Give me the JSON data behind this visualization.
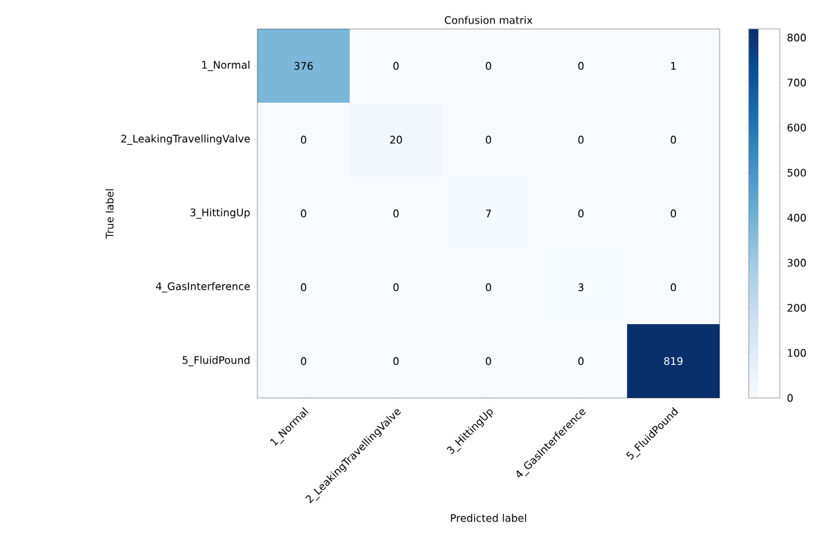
{
  "chart_data": {
    "type": "heatmap",
    "title": "Confusion matrix",
    "xlabel": "Predicted label",
    "ylabel": "True label",
    "categories": [
      "1_Normal",
      "2_LeakingTravellingValve",
      "3_HittingUp",
      "4_GasInterference",
      "5_FluidPound"
    ],
    "y_categories": [
      "1_Normal",
      "2_LeakingTravellingValve",
      "3_HittingUp",
      "4_GasInterference",
      "5_FluidPound"
    ],
    "cells": [
      [
        376,
        0,
        0,
        0,
        1
      ],
      [
        0,
        20,
        0,
        0,
        0
      ],
      [
        0,
        0,
        7,
        0,
        0
      ],
      [
        0,
        0,
        0,
        3,
        0
      ],
      [
        0,
        0,
        0,
        0,
        819
      ]
    ],
    "clim": [
      0,
      819
    ],
    "cticks": [
      0,
      100,
      200,
      300,
      400,
      500,
      600,
      700,
      800
    ],
    "data_labels": true
  }
}
